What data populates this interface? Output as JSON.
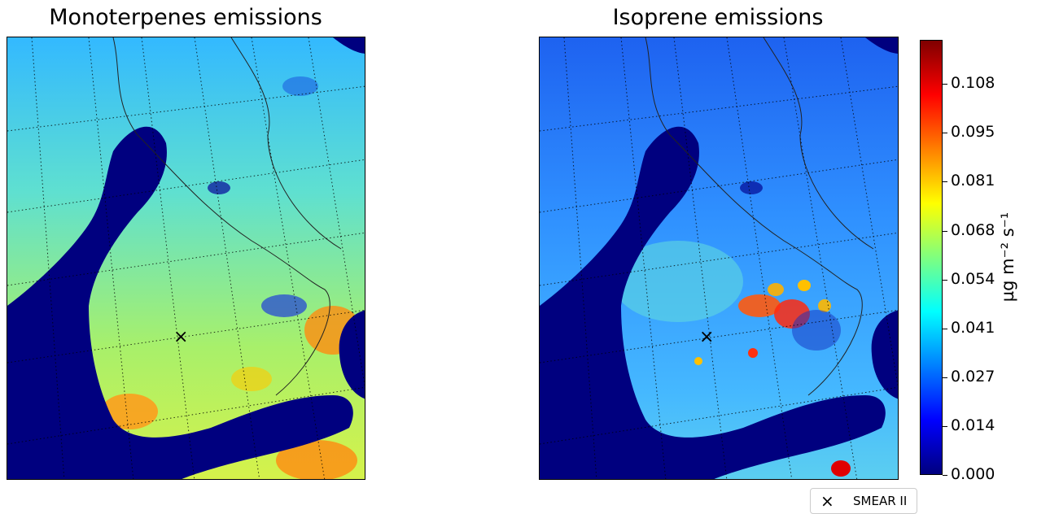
{
  "panels": [
    {
      "title": "Monoterpenes emissions",
      "site_marker": "×"
    },
    {
      "title": "Isoprene emissions",
      "site_marker": "×"
    }
  ],
  "colorbar": {
    "label": "µg m⁻² s⁻¹",
    "range": [
      0.0,
      0.12
    ],
    "colormap": "jet",
    "ticks": [
      "0.108",
      "0.095",
      "0.081",
      "0.068",
      "0.054",
      "0.041",
      "0.027",
      "0.014",
      "0.000"
    ],
    "colors": [
      "#00007f",
      "#0000ff",
      "#007fff",
      "#00ffff",
      "#7fff7f",
      "#ffff00",
      "#ff7f00",
      "#ff0000",
      "#7f0000"
    ]
  },
  "legend": {
    "marker": "×",
    "label": "SMEAR II"
  },
  "map": {
    "region": "Finland / Gulf of Bothnia",
    "water_color": "#00007f",
    "graticule": "dotted",
    "monoterpenes_dominant_color": "#7fdf9a",
    "isoprene_dominant_color": "#2f8fff"
  }
}
